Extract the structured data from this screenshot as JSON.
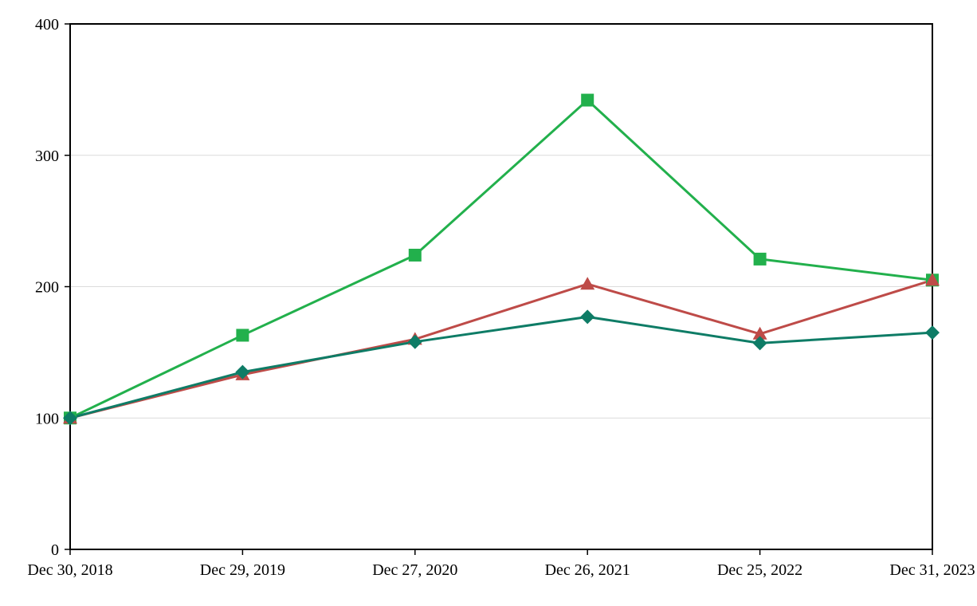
{
  "chart_data": {
    "type": "line",
    "title": "",
    "xlabel": "",
    "ylabel": "",
    "categories": [
      "Dec 30, 2018",
      "Dec 29, 2019",
      "Dec 27, 2020",
      "Dec 26, 2021",
      "Dec 25, 2022",
      "Dec 31, 2023"
    ],
    "series": [
      {
        "name": "green-squares",
        "marker": "square",
        "color": "#22B04C",
        "values": [
          100,
          163,
          224,
          342,
          221,
          205
        ]
      },
      {
        "name": "red-triangles",
        "marker": "triangle",
        "color": "#BE4B48",
        "values": [
          100,
          133,
          160,
          202,
          164,
          205
        ]
      },
      {
        "name": "teal-diamonds",
        "marker": "diamond",
        "color": "#0E7C66",
        "values": [
          100,
          135,
          158,
          177,
          157,
          165
        ]
      }
    ],
    "ylim": [
      0,
      400
    ],
    "yticks": [
      0,
      100,
      200,
      300,
      400
    ],
    "grid": true,
    "gridline_values": [
      100,
      200,
      300
    ],
    "legend": "none",
    "colors": {
      "axis": "#000000",
      "gridline": "#DCDCDC",
      "background": "#FFFFFF"
    }
  }
}
